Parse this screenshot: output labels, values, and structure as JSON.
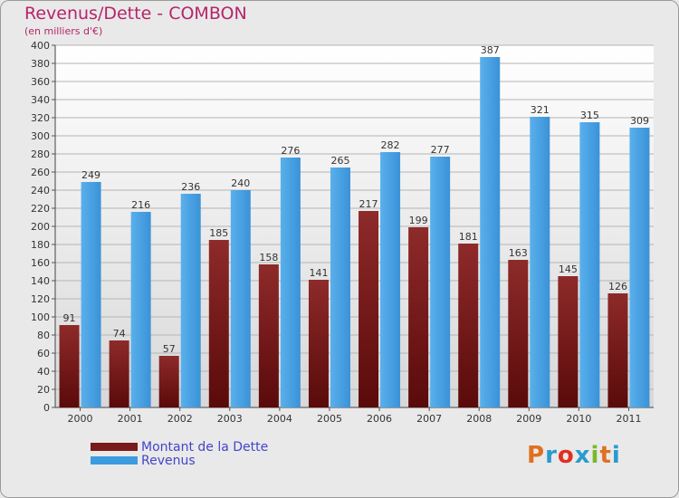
{
  "header": {
    "title": "Revenus/Dette - COMBON",
    "subtitle": "(en milliers d'€)"
  },
  "legend": {
    "items": [
      {
        "label": "Montant de la Dette",
        "color": "#7a1a1a"
      },
      {
        "label": "Revenus",
        "color": "#3d9be0"
      }
    ]
  },
  "logo": {
    "text": "Proxiti",
    "colors": [
      "#e07020",
      "#2a9ad0",
      "#e03020",
      "#2a9ad0",
      "#7ab82a",
      "#e07020",
      "#2a9ad0"
    ]
  },
  "chart_data": {
    "type": "bar",
    "title": "Revenus/Dette - COMBON",
    "subtitle": "(en milliers d'€)",
    "categories": [
      "2000",
      "2001",
      "2002",
      "2003",
      "2004",
      "2005",
      "2006",
      "2007",
      "2008",
      "2009",
      "2010",
      "2011"
    ],
    "series": [
      {
        "name": "Montant de la Dette",
        "color": "#7a1a1a",
        "values": [
          91,
          74,
          57,
          185,
          158,
          141,
          217,
          199,
          181,
          163,
          145,
          126
        ]
      },
      {
        "name": "Revenus",
        "color": "#3d9be0",
        "values": [
          249,
          216,
          236,
          240,
          276,
          265,
          282,
          277,
          387,
          321,
          315,
          309
        ]
      }
    ],
    "ylim": [
      0,
      400
    ],
    "ytick_step": 20,
    "grid": true,
    "legend_position": "bottom-left"
  }
}
